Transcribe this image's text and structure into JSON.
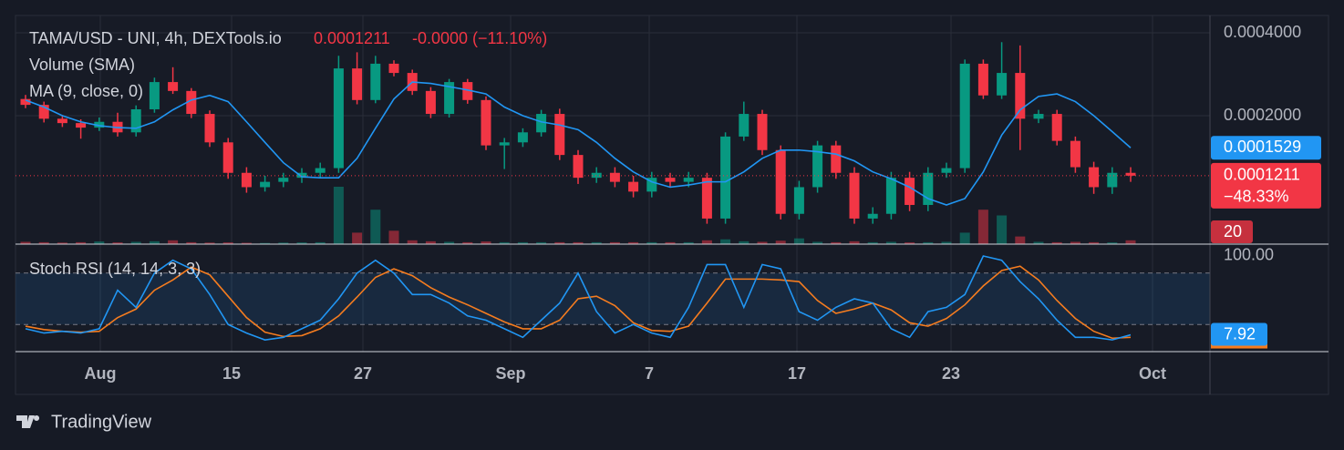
{
  "header": {
    "symbol": "TAMA/USD - UNI, 4h, DEXTools.io",
    "change": "-0.0000",
    "change_pct": "(−11.10%)",
    "volume_label": "Volume (SMA)",
    "ma_label": "MA (9, close, 0)"
  },
  "chart_data": {
    "type": "candlestick",
    "log_scale": true,
    "grid": true,
    "up_color": "#089981",
    "down_color": "#f23645",
    "ylim": [
      6.83e-05,
      0.000459
    ],
    "yticks": [
      {
        "value": 0.0004,
        "label": "0.0004000"
      },
      {
        "value": 0.0002,
        "label": "0.0002000"
      }
    ],
    "xticks": [
      "Aug",
      "15",
      "27",
      "Sep",
      "7",
      "17",
      "23",
      "Oct"
    ],
    "change_label": "−48.33%",
    "open": [
      0.00023,
      0.000219,
      0.000195,
      0.000188,
      0.000181,
      0.00019,
      0.000174,
      0.000211,
      0.000265,
      0.000246,
      0.000203,
      0.00016,
      0.000124,
      0.00011,
      0.000115,
      0.000119,
      0.000124,
      0.000129,
      0.000297,
      0.000228,
      0.000309,
      0.000286,
      0.000246,
      0.000203,
      0.000265,
      0.000228,
      0.000156,
      0.00016,
      0.000174,
      0.000203,
      0.000144,
      0.000119,
      0.000124,
      0.000115,
      0.000106,
      0.000119,
      0.000115,
      0.000119,
      8.46e-05,
      0.000168,
      0.000203,
      0.00015,
      8.8e-05,
      0.00011,
      0.000156,
      0.000124,
      8.46e-05,
      8.8e-05,
      0.000119,
      9.48e-05,
      0.000124,
      0.000129,
      0.000309,
      0.000237,
      0.000286,
      0.000195,
      0.000203,
      0.000162,
      0.00013,
      0.00011,
      0.000124
    ],
    "high": [
      0.000238,
      0.000225,
      0.000201,
      0.000194,
      0.000197,
      0.000205,
      0.000218,
      0.000275,
      0.0003,
      0.000252,
      0.000209,
      0.000166,
      0.00013,
      0.000121,
      0.000124,
      0.000129,
      0.000135,
      0.00033,
      0.00034,
      0.00033,
      0.000318,
      0.000294,
      0.000254,
      0.000272,
      0.000272,
      0.000235,
      0.000166,
      0.00018,
      0.00021,
      0.000212,
      0.00015,
      0.00013,
      0.00013,
      0.000121,
      0.000125,
      0.000124,
      0.000125,
      0.000124,
      0.000174,
      0.000225,
      0.00021,
      0.000156,
      0.000116,
      0.000162,
      0.000162,
      0.00013,
      9.3e-05,
      0.000125,
      0.000125,
      0.00013,
      0.000135,
      0.00032,
      0.00032,
      0.00037,
      0.00036,
      0.00021,
      0.00021,
      0.000168,
      0.000136,
      0.00013,
      0.00013
    ],
    "low": [
      0.000213,
      0.000189,
      0.000182,
      0.000165,
      0.000176,
      0.000168,
      0.000168,
      0.000205,
      0.00024,
      0.000196,
      0.000154,
      0.000118,
      0.000105,
      0.000106,
      0.00011,
      0.000114,
      0.000119,
      0.000124,
      0.00022,
      0.000222,
      0.000278,
      0.000238,
      0.000196,
      0.000197,
      0.000221,
      0.00015,
      0.000128,
      0.000154,
      0.000168,
      0.000138,
      0.000113,
      0.000114,
      0.00011,
      0.000101,
      0.000101,
      0.00011,
      0.00011,
      8.1e-05,
      8.1e-05,
      0.000162,
      0.000144,
      8.4e-05,
      8.4e-05,
      0.000105,
      0.000118,
      8.1e-05,
      8.1e-05,
      8.4e-05,
      9e-05,
      9e-05,
      0.000119,
      0.000124,
      0.00023,
      0.00023,
      0.00015,
      0.000188,
      0.000156,
      0.000124,
      0.000104,
      0.000104,
      0.000115
    ],
    "close": [
      0.000219,
      0.000195,
      0.000188,
      0.000181,
      0.00019,
      0.000174,
      0.000211,
      0.000265,
      0.000246,
      0.000203,
      0.00016,
      0.000124,
      0.00011,
      0.000115,
      0.000119,
      0.000124,
      0.000129,
      0.000297,
      0.000228,
      0.000309,
      0.000286,
      0.000246,
      0.000203,
      0.000265,
      0.000228,
      0.000156,
      0.00016,
      0.000174,
      0.000203,
      0.000144,
      0.000119,
      0.000124,
      0.000115,
      0.000106,
      0.000119,
      0.000115,
      0.000119,
      8.46e-05,
      0.000168,
      0.000203,
      0.00015,
      8.8e-05,
      0.00011,
      0.000156,
      0.000124,
      8.46e-05,
      8.8e-05,
      0.000119,
      9.48e-05,
      0.000124,
      0.000129,
      0.000309,
      0.000237,
      0.000286,
      0.000195,
      0.000203,
      0.000162,
      0.00013,
      0.00011,
      0.000124,
      0.0001211
    ],
    "ma": {
      "color": "#2196f3",
      "values": [
        0.000228,
        0.000215,
        0.0002,
        0.00019,
        0.000184,
        0.000181,
        0.00018,
        0.00019,
        0.00021,
        0.000228,
        0.000237,
        0.000225,
        0.00019,
        0.00016,
        0.000135,
        0.00012,
        0.000119,
        0.000119,
        0.00014,
        0.00018,
        0.00023,
        0.000265,
        0.000262,
        0.000255,
        0.000248,
        0.00024,
        0.000215,
        0.0002,
        0.00019,
        0.000185,
        0.000178,
        0.00016,
        0.00014,
        0.000125,
        0.000115,
        0.00011,
        0.000112,
        0.000115,
        0.000115,
        0.000125,
        0.00014,
        0.00015,
        0.00015,
        0.000148,
        0.000145,
        0.000137,
        0.000125,
        0.000118,
        0.00011,
        0.0001,
        9.48e-05,
        0.0001,
        0.000125,
        0.00017,
        0.00021,
        0.000235,
        0.00024,
        0.000225,
        0.0002,
        0.000175,
        0.0001529
      ]
    },
    "volume": {
      "ylim": [
        0,
        400
      ],
      "values": [
        12,
        10,
        8,
        10,
        14,
        9,
        12,
        15,
        20,
        10,
        8,
        9,
        7,
        6,
        8,
        9,
        10,
        300,
        60,
        180,
        70,
        20,
        15,
        12,
        10,
        14,
        10,
        10,
        10,
        10,
        10,
        10,
        10,
        10,
        10,
        10,
        10,
        20,
        25,
        15,
        12,
        18,
        30,
        12,
        10,
        15,
        10,
        12,
        9,
        10,
        12,
        60,
        180,
        150,
        40,
        12,
        10,
        12,
        10,
        9,
        20
      ]
    },
    "stoch": {
      "name": "Stoch RSI (14, 14, 3, 3)",
      "ylim": [
        -11.7,
        111.7
      ],
      "yticks": [
        {
          "value": 100,
          "label": "100.00"
        }
      ],
      "bands": [
        20,
        80
      ],
      "series": [
        {
          "color": "#2196f3",
          "values": [
            15,
            10,
            12,
            10,
            15,
            60,
            40,
            80,
            95,
            85,
            55,
            20,
            10,
            2,
            5,
            15,
            25,
            50,
            80,
            95,
            80,
            55,
            55,
            45,
            30,
            25,
            15,
            5,
            25,
            45,
            80,
            35,
            10,
            20,
            10,
            5,
            40,
            90,
            90,
            40,
            90,
            85,
            35,
            25,
            40,
            50,
            45,
            15,
            5,
            35,
            40,
            55,
            100,
            95,
            70,
            50,
            25,
            5,
            5,
            2,
            7.92
          ]
        },
        {
          "color": "#f57c1f",
          "values": [
            18,
            14,
            12,
            11,
            12,
            28,
            38,
            60,
            72,
            87,
            78,
            53,
            28,
            11,
            6,
            7,
            15,
            30,
            52,
            75,
            85,
            77,
            63,
            52,
            43,
            33,
            23,
            15,
            15,
            25,
            50,
            53,
            42,
            22,
            13,
            12,
            18,
            45,
            73,
            73,
            73,
            72,
            70,
            48,
            33,
            38,
            45,
            37,
            22,
            18,
            27,
            43,
            65,
            83,
            88,
            72,
            48,
            27,
            12,
            4,
            5
          ]
        }
      ]
    }
  },
  "footer": {
    "brand": "TradingView"
  }
}
